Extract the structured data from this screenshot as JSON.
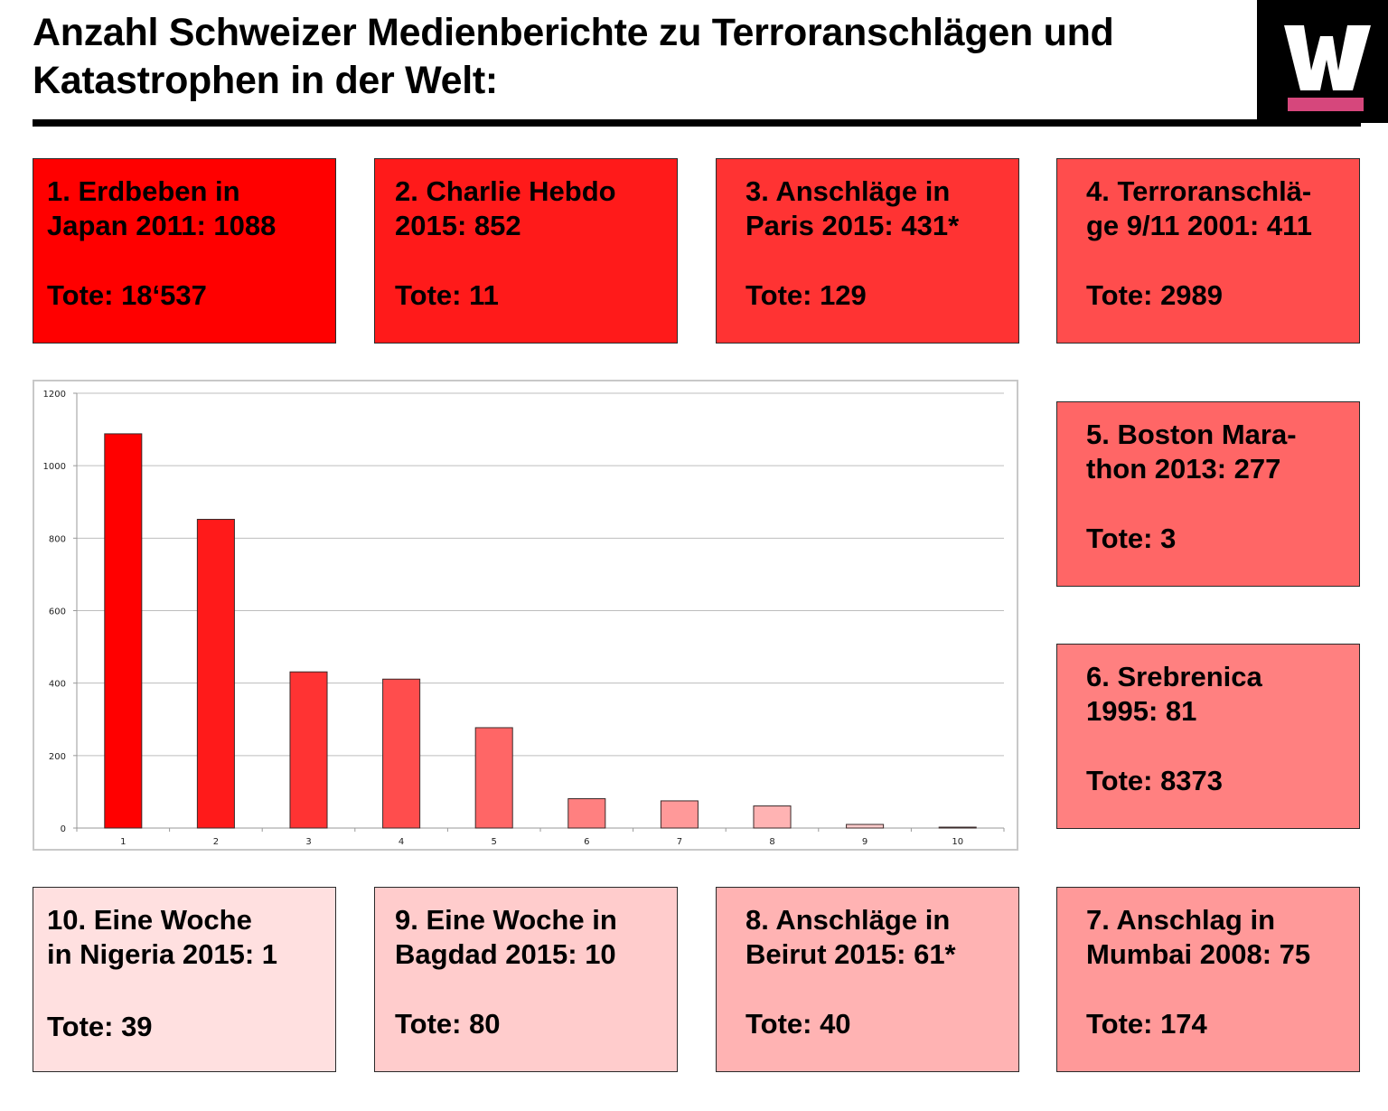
{
  "header": {
    "title": "Anzahl Schweizer Medienberichte zu Terroranschlägen und Katastrophen in der Welt:",
    "logo": {
      "icon": "w-logo-icon",
      "letter": "W",
      "bg_color": "#000000",
      "letter_color": "#ffffff",
      "bar_color": "#d6477c"
    }
  },
  "events": [
    {
      "rank": 1,
      "heading": "1. Erdbeben in\nJapan 2011: 1088",
      "tote": "Tote: 18‘537",
      "color": "#ff0000"
    },
    {
      "rank": 2,
      "heading": "2. Charlie Hebdo\n2015: 852",
      "tote": "Tote: 11",
      "color": "#ff1a1a"
    },
    {
      "rank": 3,
      "heading": "3. Anschläge in\nParis 2015: 431*",
      "tote": "Tote: 129",
      "color": "#ff3333"
    },
    {
      "rank": 4,
      "heading": "4. Terroranschlä-\nge 9/11 2001: 411",
      "tote": "Tote: 2989",
      "color": "#ff4d4d"
    },
    {
      "rank": 5,
      "heading": "5. Boston Mara-\nthon 2013: 277",
      "tote": "Tote: 3",
      "color": "#ff6666"
    },
    {
      "rank": 6,
      "heading": "6. Srebrenica\n1995: 81",
      "tote": "Tote: 8373",
      "color": "#ff8080"
    },
    {
      "rank": 7,
      "heading": "7. Anschlag in\nMumbai 2008: 75",
      "tote": "Tote: 174",
      "color": "#ff9999"
    },
    {
      "rank": 8,
      "heading": "8. Anschläge in\nBeirut 2015: 61*",
      "tote": "Tote: 40",
      "color": "#ffb3b3"
    },
    {
      "rank": 9,
      "heading": "9. Eine Woche in\nBagdad 2015: 10",
      "tote": "Tote: 80",
      "color": "#ffcccc"
    },
    {
      "rank": 10,
      "heading": "10. Eine Woche\nin Nigeria 2015: 1",
      "tote": "Tote: 39",
      "color": "#ffe0e0"
    }
  ],
  "chart_data": {
    "type": "bar",
    "title": "",
    "xlabel": "",
    "ylabel": "",
    "categories": [
      "1",
      "2",
      "3",
      "4",
      "5",
      "6",
      "7",
      "8",
      "9",
      "10"
    ],
    "values": [
      1088,
      852,
      431,
      411,
      277,
      81,
      75,
      61,
      10,
      1
    ],
    "bar_colors": [
      "#ff0000",
      "#ff1a1a",
      "#ff3333",
      "#ff4d4d",
      "#ff6666",
      "#ff8080",
      "#ff9999",
      "#ffb3b3",
      "#ffcccc",
      "#ffe0e0"
    ],
    "ylim": [
      0,
      1200
    ],
    "yticks": [
      0,
      200,
      400,
      600,
      800,
      1000,
      1200
    ],
    "grid": true,
    "legend": "none"
  }
}
